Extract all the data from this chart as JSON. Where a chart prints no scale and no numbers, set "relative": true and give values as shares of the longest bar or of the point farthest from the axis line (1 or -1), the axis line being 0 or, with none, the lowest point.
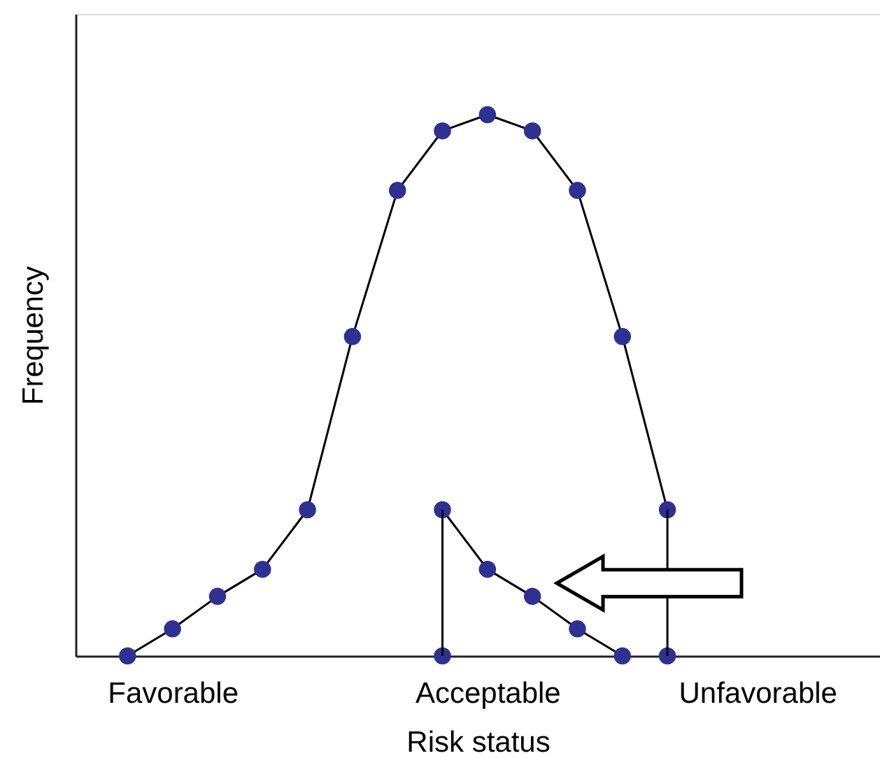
{
  "chart_data": {
    "type": "line",
    "xlabel": "Risk status",
    "ylabel": "Frequency",
    "relative": true,
    "marker": "circle",
    "line_style": "solid",
    "grid": false,
    "tick_labels": "x",
    "categories": [
      null,
      "Favorable",
      null,
      null,
      null,
      null,
      null,
      null,
      "Acceptable",
      null,
      null,
      null,
      null,
      null,
      "Unfavorable"
    ],
    "series": [
      {
        "color": "#2e3192",
        "values": [
          0,
          0.05,
          0.11,
          0.16,
          0.27,
          0.59,
          0.86,
          0.97,
          1,
          0.97,
          0.86,
          0.59,
          0.27,
          null,
          null
        ]
      },
      {
        "color": "#2e3192",
        "values": [
          null,
          null,
          null,
          null,
          null,
          null,
          null,
          0.27,
          0.16,
          0.11,
          0.05,
          0,
          null,
          null,
          null
        ]
      },
      {
        "type": "scatter",
        "color": "#2e3192",
        "values": [
          null,
          null,
          null,
          null,
          null,
          null,
          null,
          0,
          null,
          null,
          null,
          null,
          0,
          null,
          null
        ]
      },
      {
        "type": "bar",
        "color": "#000000",
        "values": [
          null,
          null,
          null,
          null,
          null,
          null,
          null,
          0.27,
          null,
          null,
          null,
          null,
          0.27,
          null,
          null
        ]
      }
    ]
  }
}
